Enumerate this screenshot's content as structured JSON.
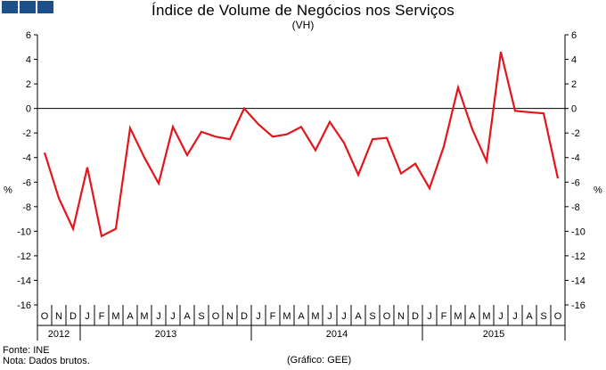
{
  "header": {
    "logo": "gee-logo-squares"
  },
  "chart_data": {
    "type": "line",
    "title": "Índice de Volume de Negócios nos Serviços",
    "subtitle": "(VH)",
    "ylabel_left": "%",
    "ylabel_right": "%",
    "ylim": [
      -16,
      6
    ],
    "yticks": [
      6,
      4,
      2,
      0,
      -2,
      -4,
      -6,
      -8,
      -10,
      -12,
      -14,
      -16
    ],
    "grid": false,
    "line_color": "#e3161b",
    "month_labels": [
      "O",
      "N",
      "D",
      "J",
      "F",
      "M",
      "A",
      "M",
      "J",
      "J",
      "A",
      "S",
      "O",
      "N",
      "D",
      "J",
      "F",
      "M",
      "A",
      "M",
      "J",
      "J",
      "A",
      "S",
      "O",
      "N",
      "D",
      "J",
      "F",
      "M",
      "A",
      "M",
      "J",
      "J",
      "A",
      "S",
      "O"
    ],
    "year_groups": [
      {
        "label": "2012",
        "start": 0,
        "count": 3
      },
      {
        "label": "2013",
        "start": 3,
        "count": 12
      },
      {
        "label": "2014",
        "start": 15,
        "count": 12
      },
      {
        "label": "2015",
        "start": 27,
        "count": 10
      }
    ],
    "series": [
      {
        "name": "Índice de Volume de Negócios nos Serviços (VH)",
        "values": [
          -3.6,
          -7.3,
          -9.8,
          -4.8,
          -10.4,
          -9.8,
          -1.6,
          -4.0,
          -6.1,
          -1.5,
          -3.8,
          -1.9,
          -2.3,
          -2.5,
          0.0,
          -1.3,
          -2.3,
          -2.1,
          -1.5,
          -3.4,
          -1.1,
          -2.8,
          -5.4,
          -2.5,
          -2.4,
          -5.3,
          -4.5,
          -6.5,
          -3.1,
          1.7,
          -1.7,
          -4.3,
          4.6,
          -0.2,
          -0.3,
          -0.4,
          -5.7
        ]
      }
    ]
  },
  "footer": {
    "source": "Fonte: INE",
    "note": "Nota: Dados brutos.",
    "credit": "(Gráfico: GEE)"
  }
}
